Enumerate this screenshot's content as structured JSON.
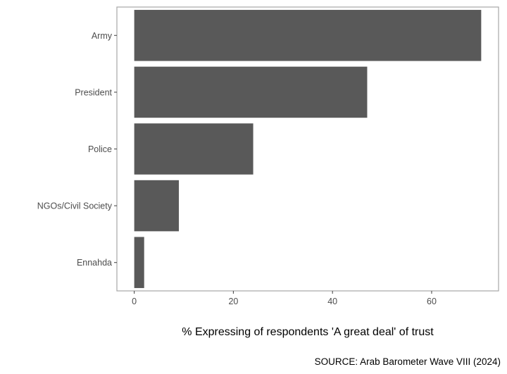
{
  "chart_data": {
    "type": "bar",
    "orientation": "horizontal",
    "categories": [
      "Army",
      "President",
      "Police",
      "NGOs/Civil Society",
      "Ennahda"
    ],
    "values": [
      70,
      47,
      24,
      9,
      2
    ],
    "title": "",
    "xlabel": "% Expressing of respondents 'A great deal' of trust",
    "ylabel": "",
    "xlim": [
      -3.5,
      73.5
    ],
    "xticks": [
      0,
      20,
      40,
      60
    ],
    "grid": false,
    "legend": "none",
    "caption": "SOURCE: Arab Barometer Wave VIII (2024)",
    "colors": {
      "bar": "#595959",
      "panel_border": "#a6a6a6",
      "tick": "#4d4d4d"
    }
  }
}
